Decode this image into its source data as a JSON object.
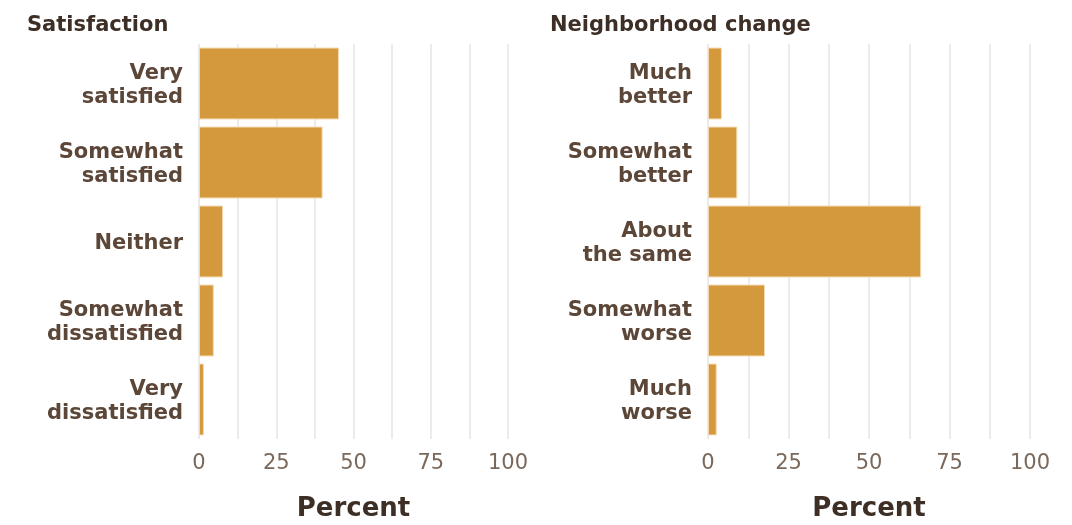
{
  "chart_data": [
    {
      "type": "bar",
      "orientation": "horizontal",
      "title": "Satisfaction",
      "xlabel": "Percent",
      "categories": [
        "Very\nsatisfied",
        "Somewhat\nsatisfied",
        "Neither",
        "Somewhat\ndissatisfied",
        "Very\ndissatisfied"
      ],
      "values": [
        45.3,
        40.0,
        7.8,
        4.8,
        1.6
      ],
      "color": "#d4993c",
      "xlim": [
        0,
        100
      ],
      "xticks": [
        0,
        {
          "value": 12.5,
          "label": null
        },
        25,
        {
          "value": 37.5,
          "label": null
        },
        50,
        {
          "value": 62.5,
          "label": null
        },
        75,
        {
          "value": 87.5,
          "label": null
        },
        100
      ],
      "grid": "x"
    },
    {
      "type": "bar",
      "orientation": "horizontal",
      "title": "Neighborhood change",
      "xlabel": "Percent",
      "categories": [
        "Much\nbetter",
        "Somewhat\nbetter",
        "About\nthe same",
        "Somewhat\nworse",
        "Much\nworse"
      ],
      "values": [
        4.3,
        9.1,
        66.2,
        17.7,
        2.7
      ],
      "color": "#d4993c",
      "xlim": [
        0,
        100
      ],
      "xticks": [
        0,
        {
          "value": 12.5,
          "label": null
        },
        25,
        {
          "value": 37.5,
          "label": null
        },
        50,
        {
          "value": 62.5,
          "label": null
        },
        75,
        {
          "value": 87.5,
          "label": null
        },
        100
      ],
      "grid": "x"
    }
  ]
}
